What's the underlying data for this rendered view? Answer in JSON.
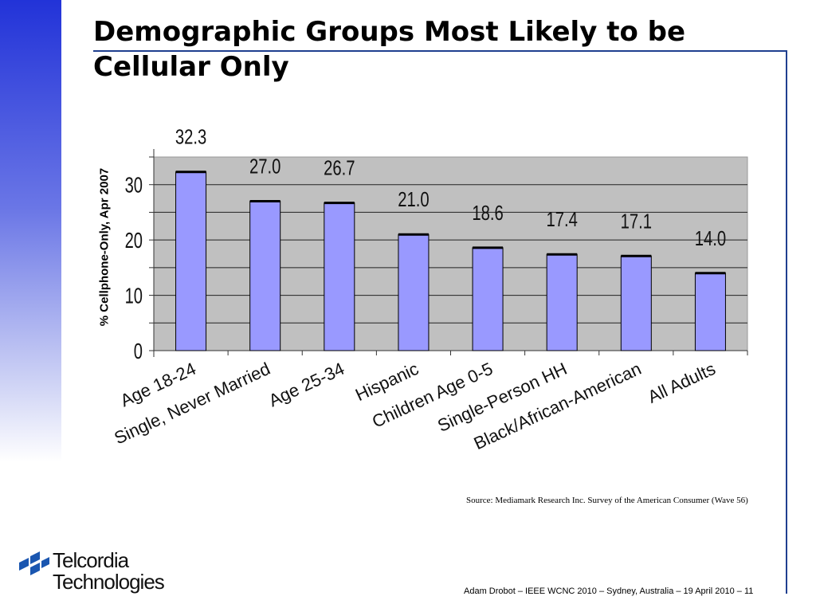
{
  "slide": {
    "title": "Demographic Groups Most Likely to be Cellular Only",
    "source": "Source: Mediamark Research Inc. Survey of the American Consumer (Wave 56)",
    "footer": "Adam Drobot – IEEE WCNC 2010 – Sydney, Australia – 19 April 2010  – 11",
    "logo": {
      "line1": "Telcordia",
      "line2": "Technologies"
    }
  },
  "colors": {
    "bar": "#9999ff",
    "plot_bg": "#c0c0c0",
    "accent": "#1f3f8f"
  },
  "chart_data": {
    "type": "bar",
    "title": "",
    "ylabel": "% Cellphone-Only, Apr 2007",
    "xlabel": "",
    "categories": [
      "Age 18-24",
      "Single, Never Married",
      "Age 25-34",
      "Hispanic",
      "Children Age 0-5",
      "Single-Person HH",
      "Black/African-American",
      "All Adults"
    ],
    "values": [
      32.3,
      27.0,
      26.7,
      21.0,
      18.6,
      17.4,
      17.1,
      14.0
    ],
    "value_labels": [
      "32.3",
      "27.0",
      "26.7",
      "21.0",
      "18.6",
      "17.4",
      "17.1",
      "14.0"
    ],
    "yticks": [
      0,
      10,
      20,
      30
    ],
    "ylim": [
      0,
      35
    ],
    "grid": true,
    "legend": "none"
  }
}
